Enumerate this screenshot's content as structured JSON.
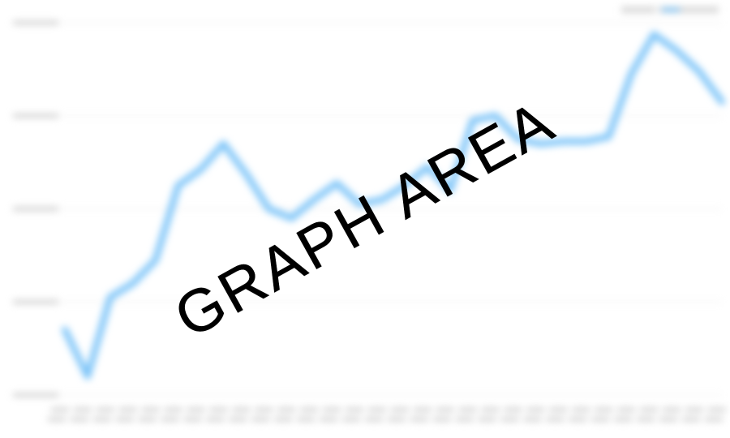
{
  "watermark": {
    "text": "GRAPH AREA"
  },
  "chart_data": {
    "type": "line",
    "title": "",
    "xlabel": "",
    "ylabel": "",
    "grid": true,
    "legend": "top-right",
    "series": [
      {
        "color": "#7cc4f8",
        "values": [
          0.28,
          0.08,
          0.42,
          0.48,
          0.58,
          0.9,
          0.97,
          1.08,
          0.95,
          0.8,
          0.76,
          0.84,
          0.91,
          0.82,
          0.84,
          0.9,
          0.98,
          0.88,
          1.18,
          1.2,
          1.1,
          1.08,
          1.09,
          1.09,
          1.11,
          1.38,
          1.55,
          1.48,
          1.39,
          1.26
        ]
      }
    ],
    "ylim": [
      0,
      1.6
    ],
    "colors": {
      "line": "#7cc4f8",
      "grid": "#e6e6e6",
      "labels": "#c8c8c8",
      "watermark": "#000000"
    }
  }
}
